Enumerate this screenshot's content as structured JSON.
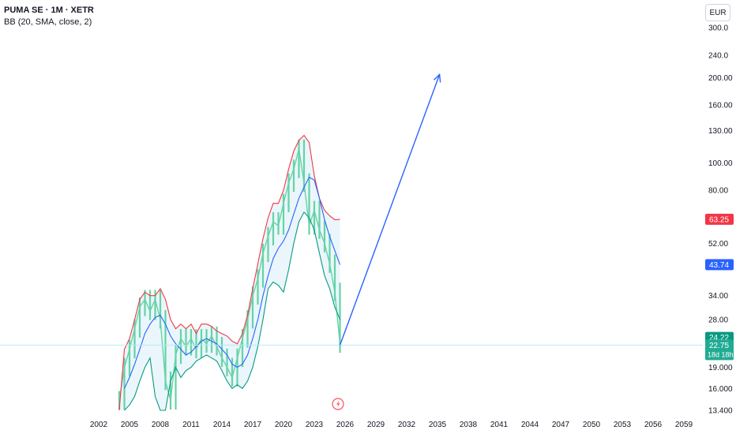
{
  "legend": {
    "symbol": "PUMA SE · 1M · XETR",
    "indicator": "BB (20, SMA, close, 2)"
  },
  "currency": "EUR",
  "colors": {
    "upper_band": "#f23645",
    "basis": "#2962ff",
    "lower_band": "#089981",
    "candles": "#66d3a5",
    "band_fill": "#eaf6fb",
    "arrow": "#2962ff",
    "last_price": "#089981",
    "upper_tag": "#f23645",
    "basis_tag": "#2962ff",
    "current_line": "#b2ebf2"
  },
  "price_tags": {
    "upper": "63.25",
    "basis": "43.74",
    "last": "24.22",
    "current": "22.75",
    "countdown": "18d 18h"
  },
  "chart_data": {
    "type": "line",
    "title": "PUMA SE · 1M · XETR",
    "indicator": "BB (20, SMA, close, 2)",
    "y_scale": "log",
    "ylim": [
      13.4,
      340
    ],
    "xlim": [
      2000.5,
      2061
    ],
    "x_ticks": [
      "2002",
      "2005",
      "2008",
      "2011",
      "2014",
      "2017",
      "2020",
      "2023",
      "2026",
      "2029",
      "2032",
      "2035",
      "2038",
      "2041",
      "2044",
      "2047",
      "2050",
      "2053",
      "2056",
      "2059"
    ],
    "y_ticks": [
      "300.0",
      "240.0",
      "200.00",
      "160.00",
      "130.00",
      "100.00",
      "80.00",
      "52.00",
      "34.00",
      "28.00",
      "19.000",
      "16.000",
      "13.400"
    ],
    "series": [
      {
        "name": "Close",
        "x": [
          2004.0,
          2004.5,
          2005.0,
          2005.5,
          2006.0,
          2006.5,
          2007.0,
          2007.5,
          2008.0,
          2008.5,
          2009.0,
          2009.5,
          2010.0,
          2010.5,
          2011.0,
          2011.5,
          2012.0,
          2012.5,
          2013.0,
          2013.5,
          2014.0,
          2014.5,
          2015.0,
          2015.5,
          2016.0,
          2016.5,
          2017.0,
          2017.5,
          2018.0,
          2018.5,
          2019.0,
          2019.5,
          2020.0,
          2020.5,
          2021.0,
          2021.5,
          2022.0,
          2022.5,
          2023.0,
          2023.5,
          2024.0,
          2024.5,
          2025.0,
          2025.5
        ],
        "values": [
          14.5,
          19.0,
          22.0,
          26.0,
          31.0,
          33.0,
          30.0,
          33.0,
          28.0,
          17.0,
          14.5,
          21.0,
          24.0,
          22.5,
          24.0,
          22.0,
          24.0,
          23.0,
          24.5,
          22.5,
          20.5,
          19.0,
          17.5,
          20.5,
          24.0,
          28.0,
          34.0,
          39.0,
          48.0,
          55.0,
          62.0,
          60.0,
          72.0,
          85.0,
          95.0,
          112.0,
          85.0,
          60.0,
          68.0,
          58.0,
          52.0,
          44.0,
          35.0,
          23.0
        ]
      },
      {
        "name": "Upper",
        "x": [
          2004.0,
          2004.5,
          2005.0,
          2005.5,
          2006.0,
          2006.5,
          2007.0,
          2007.5,
          2008.0,
          2008.5,
          2009.0,
          2009.5,
          2010.0,
          2010.5,
          2011.0,
          2011.5,
          2012.0,
          2012.5,
          2013.0,
          2013.5,
          2014.0,
          2014.5,
          2015.0,
          2015.5,
          2016.0,
          2016.5,
          2017.0,
          2017.5,
          2018.0,
          2018.5,
          2019.0,
          2019.5,
          2020.0,
          2020.5,
          2021.0,
          2021.5,
          2022.0,
          2022.5,
          2023.0,
          2023.5,
          2024.0,
          2024.5,
          2025.0,
          2025.5
        ],
        "values": [
          13.4,
          22.0,
          24.0,
          28.0,
          33.0,
          35.0,
          34.0,
          34.0,
          36.0,
          33.0,
          28.0,
          26.0,
          27.0,
          26.0,
          27.0,
          25.0,
          27.0,
          27.0,
          26.5,
          25.5,
          25.0,
          24.5,
          23.5,
          23.0,
          25.0,
          29.0,
          36.0,
          44.0,
          54.0,
          64.0,
          72.0,
          72.0,
          80.0,
          95.0,
          110.0,
          120.0,
          125.0,
          118.0,
          90.0,
          75.0,
          68.0,
          65.0,
          63.0,
          63.25
        ]
      },
      {
        "name": "Basis",
        "x": [
          2004.5,
          2005.0,
          2005.5,
          2006.0,
          2006.5,
          2007.0,
          2007.5,
          2008.0,
          2008.5,
          2009.0,
          2009.5,
          2010.0,
          2010.5,
          2011.0,
          2011.5,
          2012.0,
          2012.5,
          2013.0,
          2013.5,
          2014.0,
          2014.5,
          2015.0,
          2015.5,
          2016.0,
          2016.5,
          2017.0,
          2017.5,
          2018.0,
          2018.5,
          2019.0,
          2019.5,
          2020.0,
          2020.5,
          2021.0,
          2021.5,
          2022.0,
          2022.5,
          2023.0,
          2023.5,
          2024.0,
          2024.5,
          2025.0,
          2025.5
        ],
        "values": [
          16.0,
          17.5,
          19.5,
          22.0,
          25.0,
          27.0,
          28.5,
          29.0,
          27.0,
          24.5,
          23.0,
          22.0,
          21.0,
          21.5,
          22.5,
          23.5,
          24.0,
          23.5,
          23.0,
          22.0,
          21.0,
          19.5,
          19.0,
          19.5,
          21.0,
          24.0,
          28.0,
          34.0,
          40.0,
          46.0,
          50.0,
          53.0,
          58.0,
          66.0,
          75.0,
          82.0,
          89.0,
          87.0,
          75.0,
          63.0,
          55.0,
          49.0,
          43.74
        ]
      },
      {
        "name": "Lower",
        "x": [
          2004.5,
          2005.0,
          2005.5,
          2006.0,
          2006.5,
          2007.0,
          2007.5,
          2008.0,
          2008.5,
          2009.0,
          2009.5,
          2010.0,
          2010.5,
          2011.0,
          2011.5,
          2012.0,
          2012.5,
          2013.0,
          2013.5,
          2014.0,
          2014.5,
          2015.0,
          2015.5,
          2016.0,
          2016.5,
          2017.0,
          2017.5,
          2018.0,
          2018.5,
          2019.0,
          2019.5,
          2020.0,
          2020.5,
          2021.0,
          2021.5,
          2022.0,
          2022.5,
          2023.0,
          2023.5,
          2024.0,
          2024.5,
          2025.0,
          2025.5
        ],
        "values": [
          13.4,
          14.0,
          15.0,
          17.0,
          19.0,
          20.5,
          15.0,
          13.4,
          13.4,
          17.0,
          19.0,
          17.5,
          18.5,
          19.0,
          20.0,
          20.5,
          21.0,
          20.5,
          20.0,
          18.5,
          17.0,
          16.0,
          16.5,
          16.0,
          17.0,
          19.0,
          22.5,
          28.0,
          36.0,
          38.0,
          37.0,
          35.0,
          42.0,
          52.0,
          62.0,
          67.0,
          64.0,
          58.0,
          48.0,
          40.0,
          36.0,
          31.0,
          28.0
        ]
      },
      {
        "name": "Projection",
        "x": [
          2025.5,
          2035.2
        ],
        "values": [
          22.75,
          205.0
        ]
      }
    ],
    "legend_position": "top-left",
    "grid": false
  }
}
